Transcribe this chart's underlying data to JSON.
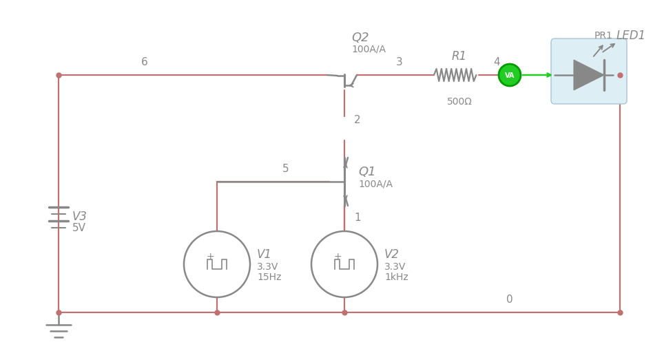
{
  "bg_color": "#ffffff",
  "wire_color": "#c07070",
  "comp_color": "#888888",
  "led_bg": "#ddeef5",
  "va_green": "#22cc22",
  "va_dark": "#009900",
  "fig_w": 9.16,
  "fig_h": 5.1,
  "q2_text": "Q2",
  "q2_gain": "100A/A",
  "q1_text": "Q1",
  "q1_gain": "100A/A",
  "r1_text": "R1",
  "r1_val": "500Ω",
  "v3_text": "V3",
  "v3_val": "5V",
  "v1_text": "V1",
  "v1_val1": "3.3V",
  "v1_val2": "15Hz",
  "v2_text": "V2",
  "v2_val1": "3.3V",
  "v2_val2": "1kHz",
  "pr1_text": "PR1",
  "led1_text": "LED1",
  "n0": "0",
  "n1": "1",
  "n2": "2",
  "n3": "3",
  "n4": "4",
  "n5": "5",
  "n6": "6"
}
